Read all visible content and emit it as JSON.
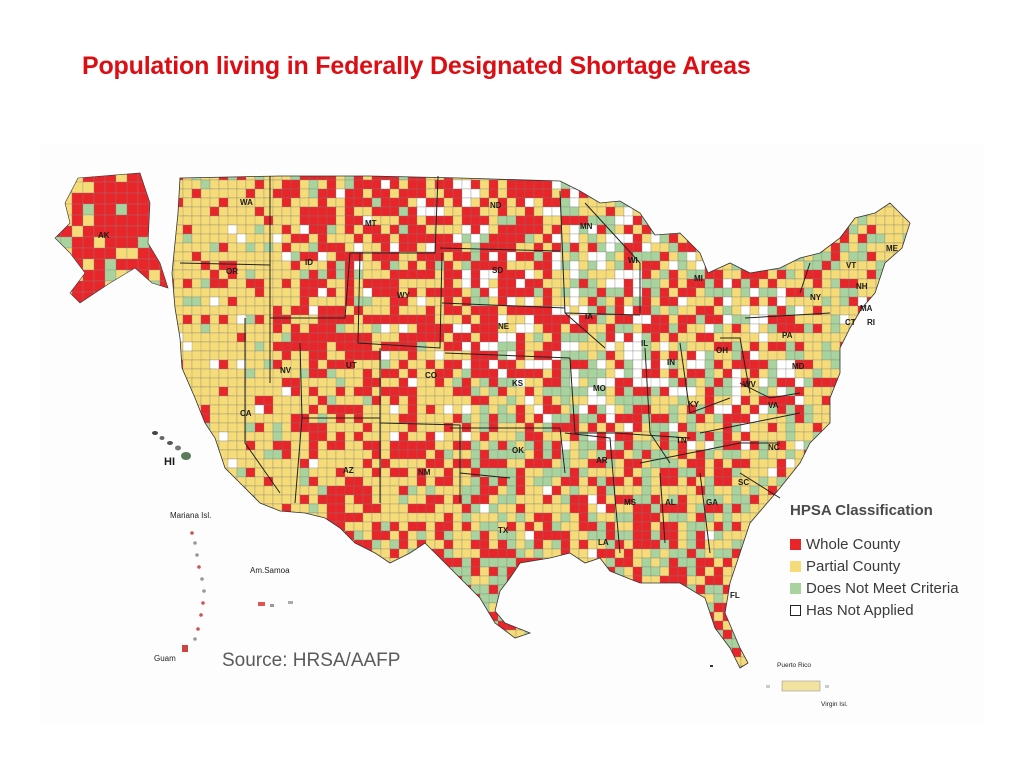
{
  "title": "Population living in Federally Designated Shortage Areas",
  "source": "Source: HRSA/AAFP",
  "legend": {
    "title": "HPSA Classification",
    "items": [
      {
        "label": "Whole County",
        "color": "#e8262a"
      },
      {
        "label": "Partial County",
        "color": "#f6dc78"
      },
      {
        "label": "Does Not Meet Criteria",
        "color": "#a9d39e"
      },
      {
        "label": "Has Not Applied",
        "color": "#ffffff"
      }
    ]
  },
  "colors": {
    "whole": "#e8262a",
    "partial": "#f6dc78",
    "not_meet": "#a9d39e",
    "not_applied": "#ffffff",
    "title": "#dd0d14"
  },
  "state_labels": [
    "AK",
    "WA",
    "OR",
    "CA",
    "ID",
    "NV",
    "MT",
    "WY",
    "UT",
    "AZ",
    "CO",
    "NM",
    "ND",
    "SD",
    "NE",
    "KS",
    "OK",
    "TX",
    "MN",
    "IA",
    "MO",
    "AR",
    "LA",
    "WI",
    "IL",
    "MI",
    "IN",
    "OH",
    "KY",
    "TN",
    "MS",
    "AL",
    "GA",
    "FL",
    "SC",
    "NC",
    "VA",
    "WV",
    "PA",
    "NY",
    "VT",
    "NH",
    "ME",
    "MA",
    "CT",
    "RI",
    "MD",
    "HI"
  ],
  "territory_labels": [
    "Mariana Isl.",
    "Am.Samoa",
    "Guam",
    "Puerto Rico",
    "Virgin Isl."
  ]
}
